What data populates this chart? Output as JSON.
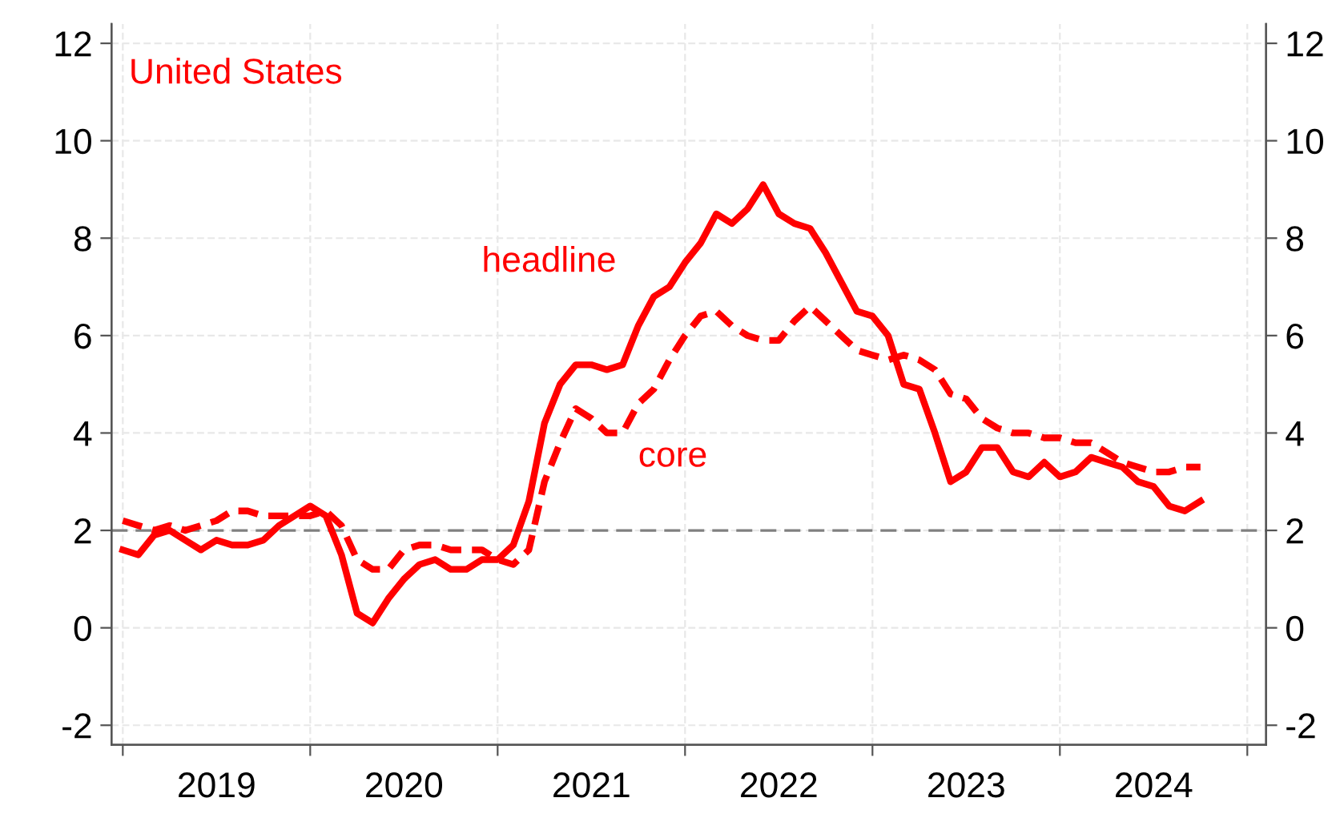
{
  "chart_data": {
    "type": "line",
    "title": "United States",
    "x": [
      2019.0,
      2019.0833,
      2019.1667,
      2019.25,
      2019.3333,
      2019.4167,
      2019.5,
      2019.5833,
      2019.6667,
      2019.75,
      2019.8333,
      2019.9167,
      2020.0,
      2020.0833,
      2020.1667,
      2020.25,
      2020.3333,
      2020.4167,
      2020.5,
      2020.5833,
      2020.6667,
      2020.75,
      2020.8333,
      2020.9167,
      2021.0,
      2021.0833,
      2021.1667,
      2021.25,
      2021.3333,
      2021.4167,
      2021.5,
      2021.5833,
      2021.6667,
      2021.75,
      2021.8333,
      2021.9167,
      2022.0,
      2022.0833,
      2022.1667,
      2022.25,
      2022.3333,
      2022.4167,
      2022.5,
      2022.5833,
      2022.6667,
      2022.75,
      2022.8333,
      2022.9167,
      2023.0,
      2023.0833,
      2023.1667,
      2023.25,
      2023.3333,
      2023.4167,
      2023.5,
      2023.5833,
      2023.6667,
      2023.75,
      2023.8333,
      2023.9167,
      2024.0,
      2024.0833,
      2024.1667,
      2024.25,
      2024.3333,
      2024.4167,
      2024.5,
      2024.5833,
      2024.6667,
      2024.75
    ],
    "series": [
      {
        "name": "headline",
        "color": "#ff0000",
        "line_style": "solid",
        "values": [
          1.6,
          1.5,
          1.9,
          2.0,
          1.8,
          1.6,
          1.8,
          1.7,
          1.7,
          1.8,
          2.1,
          2.3,
          2.5,
          2.3,
          1.5,
          0.3,
          0.1,
          0.6,
          1.0,
          1.3,
          1.4,
          1.2,
          1.2,
          1.4,
          1.4,
          1.7,
          2.6,
          4.2,
          5.0,
          5.4,
          5.4,
          5.3,
          5.4,
          6.2,
          6.8,
          7.0,
          7.5,
          7.9,
          8.5,
          8.3,
          8.6,
          9.1,
          8.5,
          8.3,
          8.2,
          7.7,
          7.1,
          6.5,
          6.4,
          6.0,
          5.0,
          4.9,
          4.0,
          3.0,
          3.2,
          3.7,
          3.7,
          3.2,
          3.1,
          3.4,
          3.1,
          3.2,
          3.5,
          3.4,
          3.3,
          3.0,
          2.9,
          2.5,
          2.4,
          2.6
        ]
      },
      {
        "name": "core",
        "color": "#ff0000",
        "line_style": "dashed",
        "values": [
          2.2,
          2.1,
          2.0,
          2.1,
          2.0,
          2.1,
          2.2,
          2.4,
          2.4,
          2.3,
          2.3,
          2.3,
          2.3,
          2.4,
          2.1,
          1.4,
          1.2,
          1.2,
          1.6,
          1.7,
          1.7,
          1.6,
          1.6,
          1.6,
          1.4,
          1.3,
          1.6,
          3.0,
          3.8,
          4.5,
          4.3,
          4.0,
          4.0,
          4.6,
          4.9,
          5.5,
          6.0,
          6.4,
          6.5,
          6.2,
          6.0,
          5.9,
          5.9,
          6.3,
          6.6,
          6.3,
          6.0,
          5.7,
          5.6,
          5.5,
          5.6,
          5.5,
          5.3,
          4.8,
          4.7,
          4.3,
          4.1,
          4.0,
          4.0,
          3.9,
          3.9,
          3.8,
          3.8,
          3.6,
          3.4,
          3.3,
          3.2,
          3.2,
          3.3,
          3.3
        ]
      }
    ],
    "xlim": [
      2018.94,
      2025.1
    ],
    "xticks": [
      {
        "value": 2019,
        "label": null
      },
      {
        "value": 2019.5,
        "label": "2019"
      },
      {
        "value": 2020,
        "label": null
      },
      {
        "value": 2020.5,
        "label": "2020"
      },
      {
        "value": 2021,
        "label": null
      },
      {
        "value": 2021.5,
        "label": "2021"
      },
      {
        "value": 2022,
        "label": null
      },
      {
        "value": 2022.5,
        "label": "2022"
      },
      {
        "value": 2023,
        "label": null
      },
      {
        "value": 2023.5,
        "label": "2023"
      },
      {
        "value": 2024,
        "label": null
      },
      {
        "value": 2024.5,
        "label": "2024"
      },
      {
        "value": 2025,
        "label": null
      }
    ],
    "ylim": [
      -2.4,
      12.4
    ],
    "yticks": [
      -2,
      0,
      2,
      4,
      6,
      8,
      10,
      12
    ],
    "y2lim": [
      -2.4,
      12.4
    ],
    "y2ticks": [
      -2,
      0,
      2,
      4,
      6,
      8,
      10,
      12
    ],
    "ref_lines": [
      {
        "axis": "y",
        "value": 2,
        "color": "#808080",
        "line_style": "dashed"
      }
    ],
    "grid": true,
    "legend": false
  }
}
